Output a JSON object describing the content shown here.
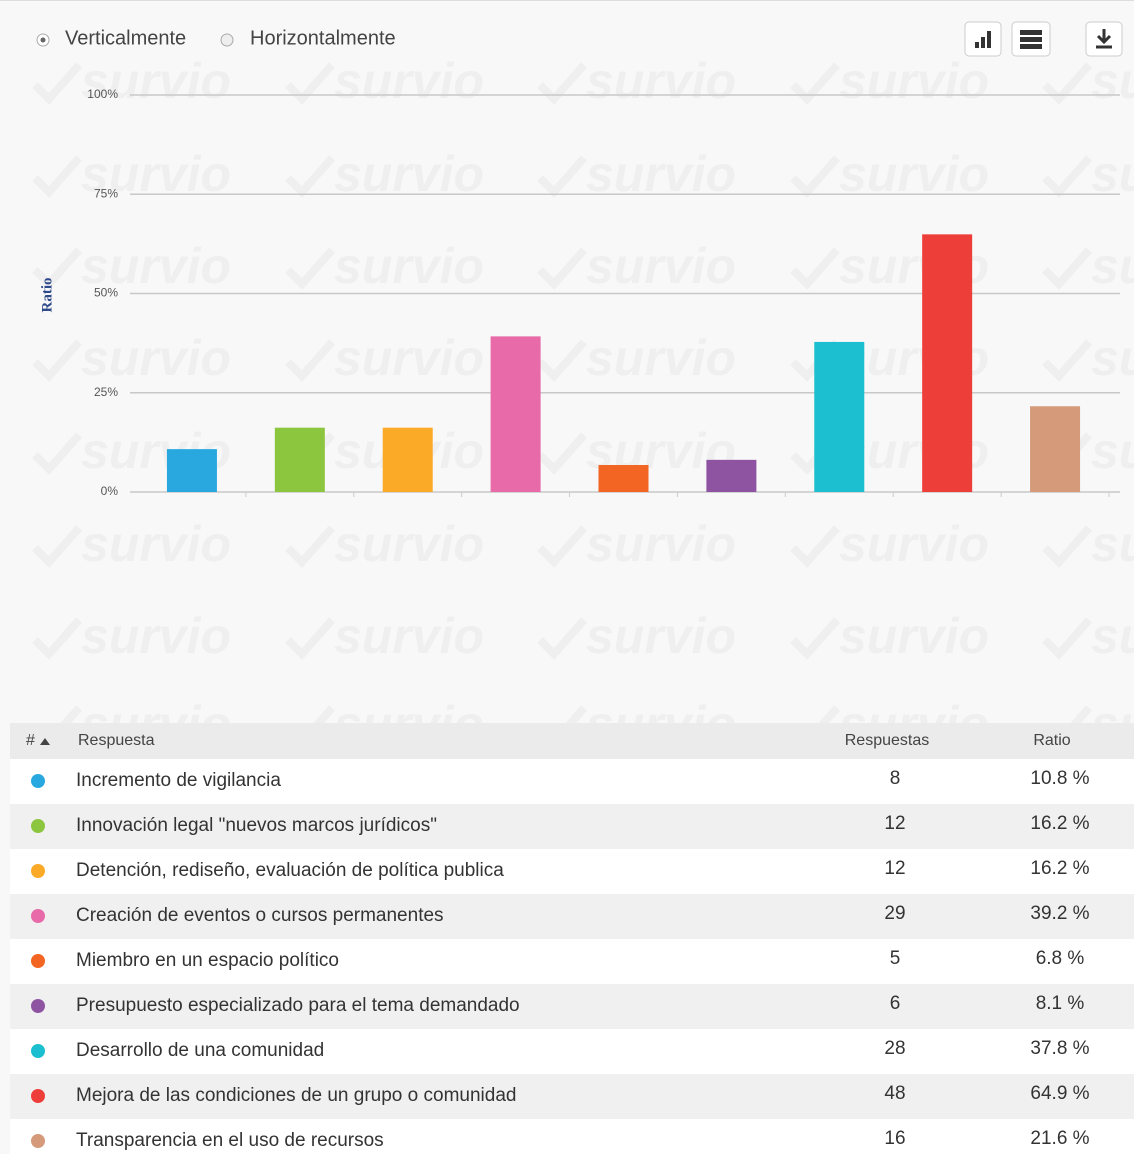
{
  "watermark": "survio",
  "controls": {
    "vertical": "Verticalmente",
    "horizontal": "Horizontalmente"
  },
  "chart_data": {
    "type": "bar",
    "y_label": "Ratio",
    "values": [
      10.8,
      16.2,
      16.2,
      39.2,
      6.8,
      8.1,
      37.8,
      64.9,
      21.6
    ],
    "colors": [
      "#29a8e0",
      "#8cc63f",
      "#fbaa27",
      "#e86aa9",
      "#f26522",
      "#8e54a2",
      "#1bbfcf",
      "#ee3e3a",
      "#d49a7a"
    ],
    "ylim": [
      0,
      100
    ],
    "yticks": [
      {
        "value": 0,
        "label": "0%"
      },
      {
        "value": 25,
        "label": "25%"
      },
      {
        "value": 50,
        "label": "50%"
      },
      {
        "value": 75,
        "label": "75%"
      },
      {
        "value": 100,
        "label": "100%"
      }
    ],
    "grid": true
  },
  "table": {
    "header": [
      "#",
      "Respuesta",
      "Respuestas",
      "Ratio"
    ],
    "rows": [
      [
        "Incremento de vigilancia",
        8,
        "10.8 %"
      ],
      [
        "Innovación legal \"nuevos marcos jurídicos\"",
        12,
        "16.2 %"
      ],
      [
        "Detención, rediseño, evaluación de política publica",
        12,
        "16.2 %"
      ],
      [
        "Creación de eventos o cursos permanentes",
        29,
        "39.2 %"
      ],
      [
        "Miembro en un espacio político",
        5,
        "6.8 %"
      ],
      [
        "Presupuesto especializado para el tema demandado",
        6,
        "8.1 %"
      ],
      [
        "Desarrollo de una comunidad",
        28,
        "37.8 %"
      ],
      [
        "Mejora de las condiciones de un grupo o comunidad",
        48,
        "64.9 %"
      ],
      [
        "Transparencia en el uso de recursos",
        16,
        "21.6 %"
      ]
    ]
  }
}
